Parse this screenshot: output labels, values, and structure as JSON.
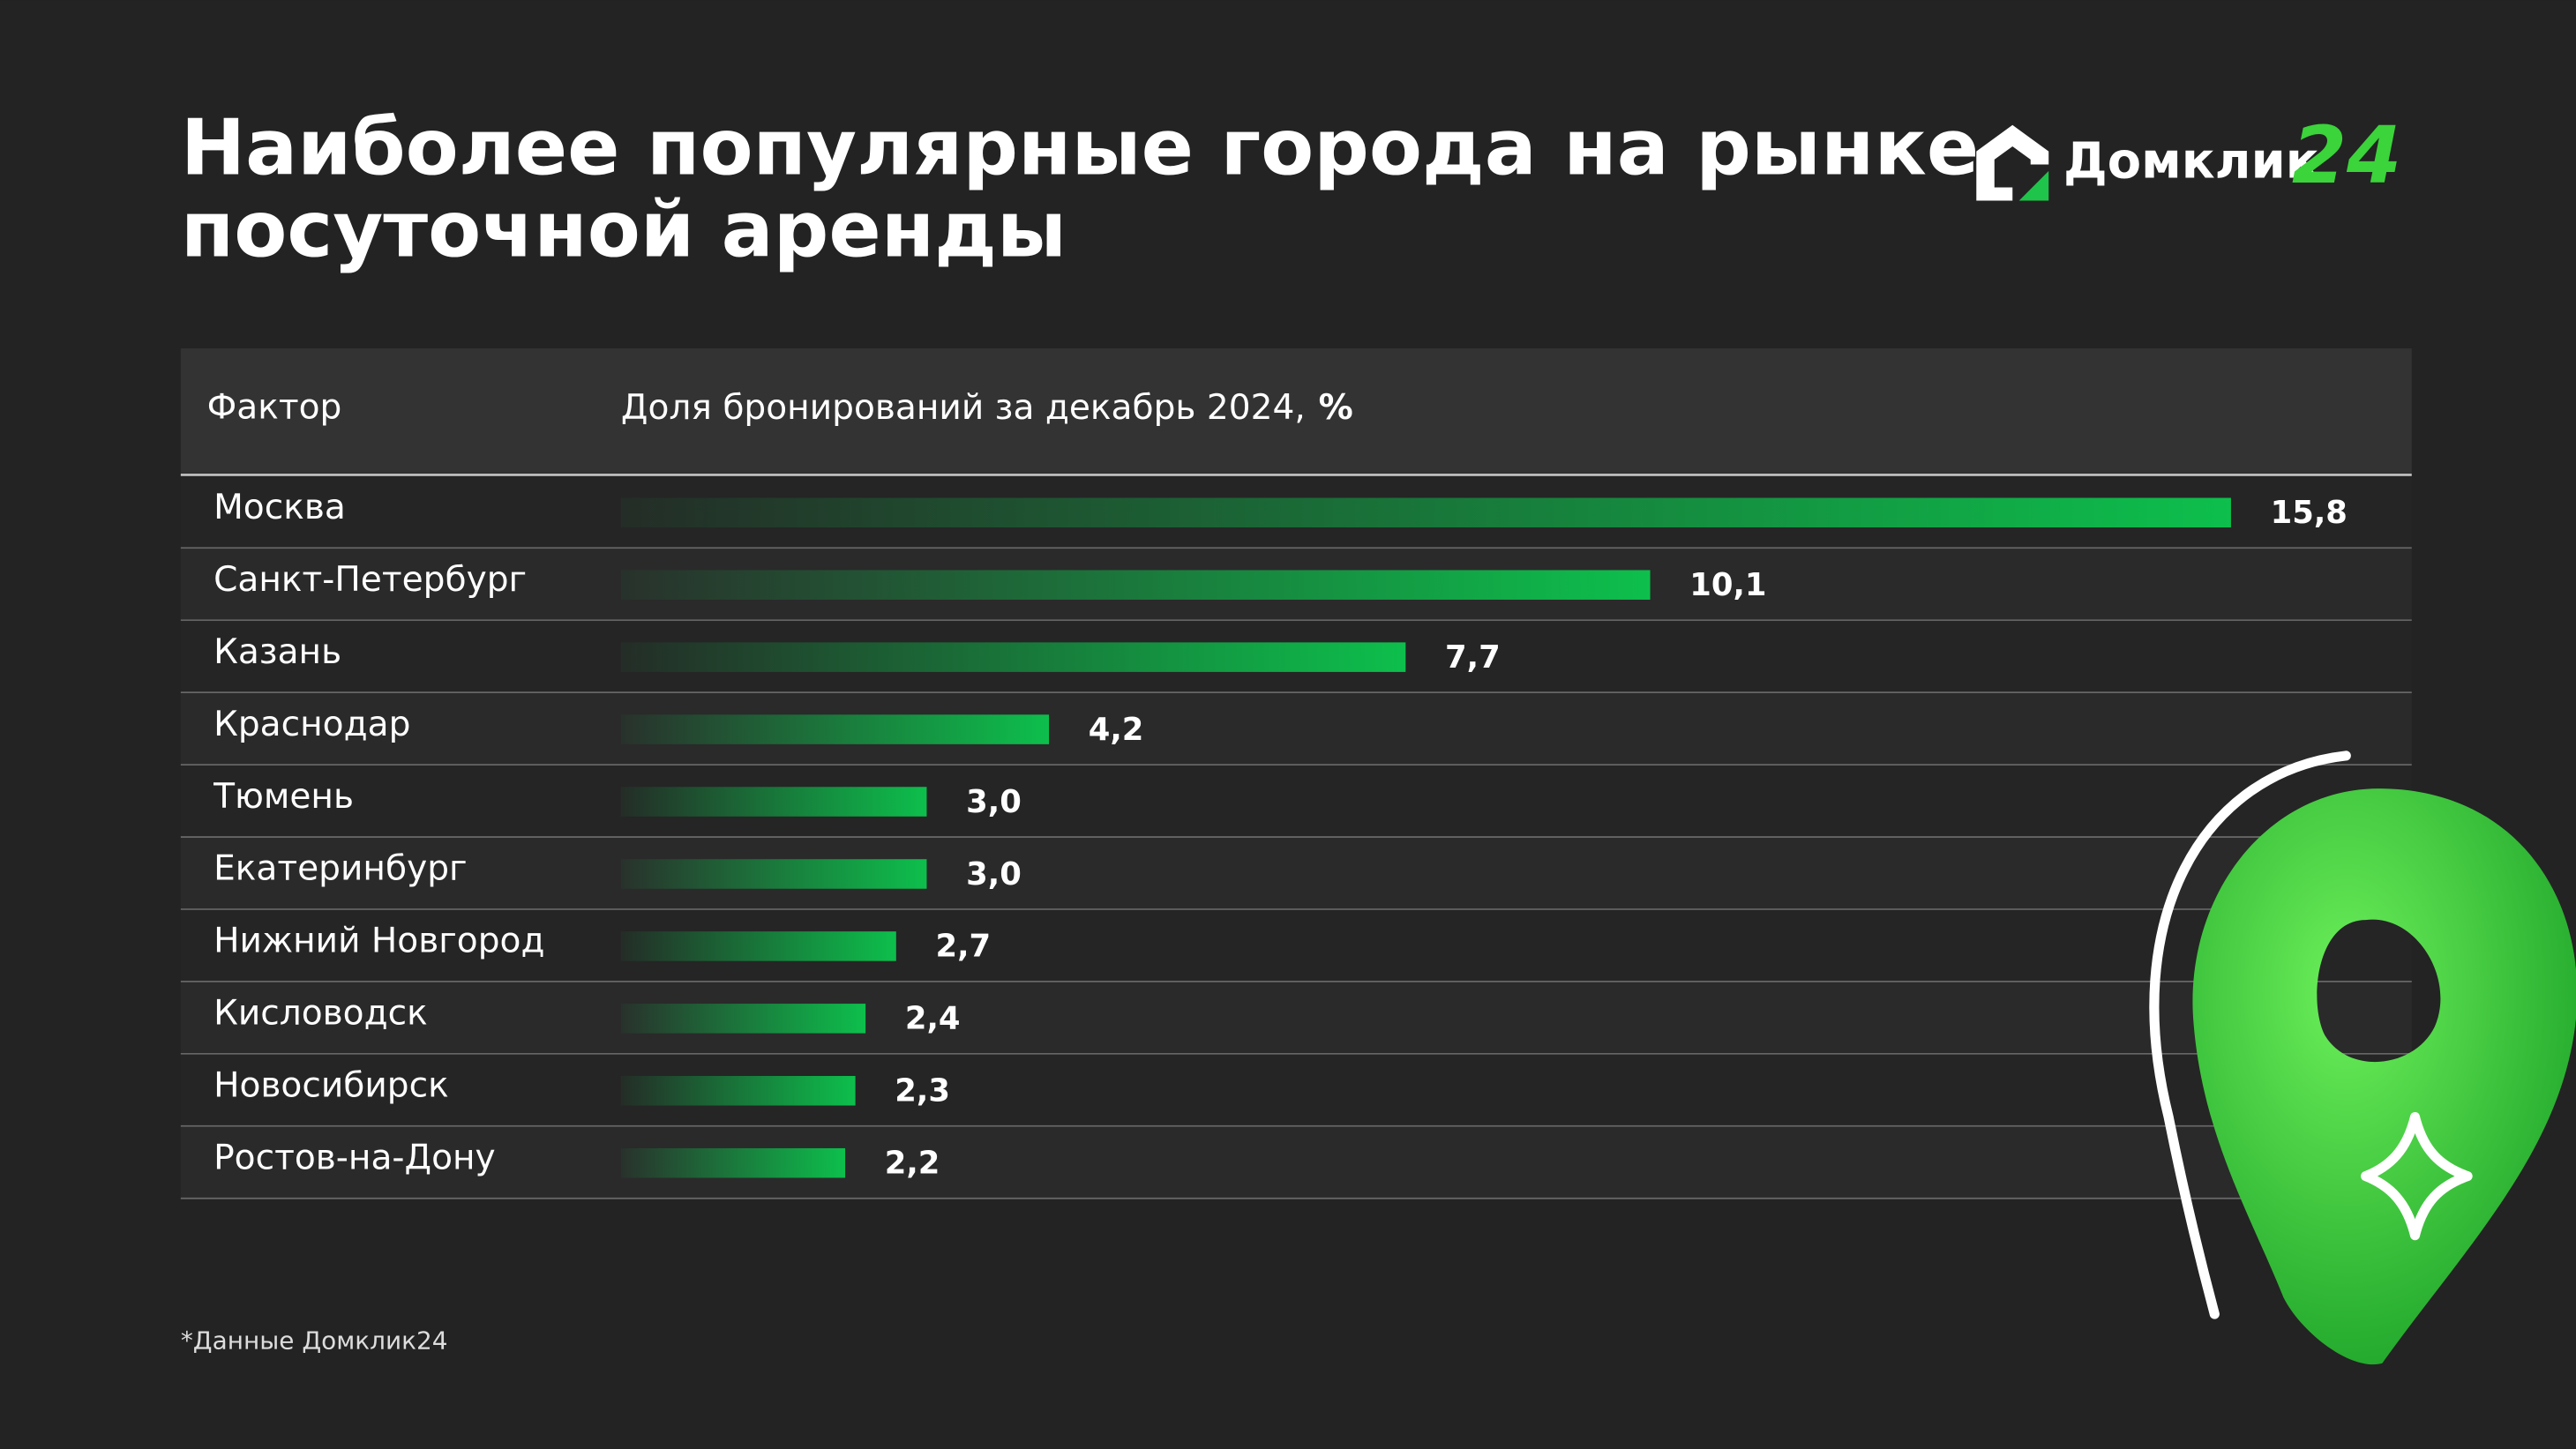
{
  "logo": {
    "name": "Домклик",
    "suffix": "24"
  },
  "chart_data": {
    "type": "bar",
    "orientation": "horizontal",
    "title": [
      "Наиболее популярные города на рынке",
      "посуточной аренды"
    ],
    "column_headers": [
      "Фактор",
      "Доля бронирований за декабрь 2024,",
      "%"
    ],
    "categories": [
      "Москва",
      "Санкт-Петербург",
      "Казань",
      "Краснодар",
      "Тюмень",
      "Екатеринбург",
      "Нижний Новгород",
      "Кисловодск",
      "Новосибирск",
      "Ростов-на-Дону"
    ],
    "values": [
      15.8,
      10.1,
      7.7,
      4.2,
      3.0,
      3.0,
      2.7,
      2.4,
      2.3,
      2.2
    ],
    "value_labels": [
      "15,8",
      "10,1",
      "7,7",
      "4,2",
      "3,0",
      "3,0",
      "2,7",
      "2,4",
      "2,3",
      "2,2"
    ],
    "color": "#0dbf4c",
    "footnote": "*Данные Домклик24"
  }
}
